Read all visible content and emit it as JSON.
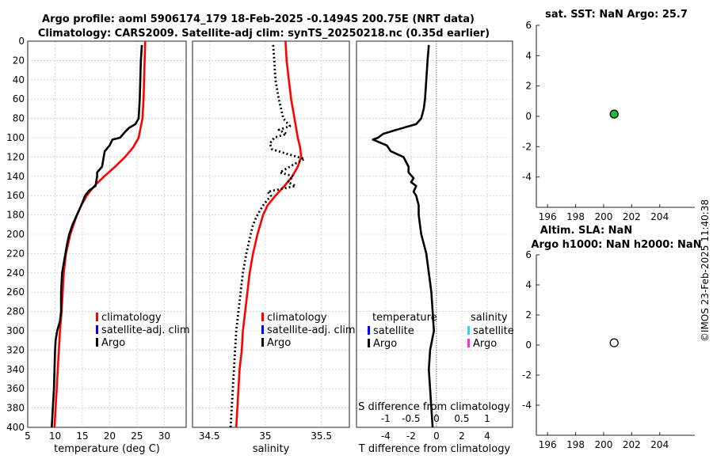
{
  "title": {
    "line1": "Argo profile: aoml 5906174_179 18-Feb-2025 -0.1494S 200.75E (NRT data)",
    "line2": "Climatology: CARS2009. Satellite-adj clim: synTS_20250218.nc (0.35d earlier)"
  },
  "footer_stamp": "©IMOS 23-Feb-2025 11:40:38",
  "colors": {
    "climatology": "#ff0000",
    "satellite": "#0000ff",
    "argo": "#000000",
    "sat_salinity": "#33ccff",
    "argo_salinity": "#ff33cc",
    "sst_marker": "#22bb33"
  },
  "chart_data": [
    {
      "id": "temperature",
      "type": "line",
      "xlabel": "temperature (deg C)",
      "ylabel": "",
      "xlim": [
        5,
        34
      ],
      "ylim": [
        400,
        0
      ],
      "xticks": [
        5,
        10,
        15,
        20,
        25,
        30
      ],
      "yticks": [
        0,
        20,
        40,
        60,
        80,
        100,
        120,
        140,
        160,
        180,
        200,
        220,
        240,
        260,
        280,
        300,
        320,
        340,
        360,
        380,
        400
      ],
      "legend": [
        "climatology",
        "satellite-adj. clim",
        "Argo"
      ],
      "series": [
        {
          "name": "climatology",
          "color": "#ff0000",
          "style": "solid",
          "depth": [
            0,
            20,
            40,
            60,
            80,
            100,
            110,
            120,
            130,
            140,
            150,
            160,
            170,
            180,
            200,
            220,
            240,
            260,
            280,
            300,
            320,
            340,
            360,
            380,
            400
          ],
          "values": [
            26.5,
            26.4,
            26.3,
            26.2,
            26.0,
            25.3,
            24.3,
            22.8,
            21.0,
            19.0,
            17.2,
            15.8,
            14.8,
            14.0,
            12.8,
            12.0,
            11.6,
            11.4,
            11.2,
            10.9,
            10.7,
            10.5,
            10.3,
            10.1,
            9.9
          ]
        },
        {
          "name": "Argo",
          "color": "#000000",
          "style": "solid",
          "depth": [
            4,
            20,
            40,
            60,
            80,
            86,
            90,
            94,
            100,
            102,
            108,
            114,
            120,
            130,
            136,
            140,
            150,
            155,
            160,
            170,
            180,
            190,
            200,
            210,
            220,
            240,
            260,
            280,
            290,
            300,
            310,
            320,
            340,
            360,
            380,
            400
          ],
          "values": [
            25.9,
            25.7,
            25.6,
            25.5,
            25.3,
            24.7,
            23.5,
            22.8,
            21.9,
            20.5,
            20.0,
            19.1,
            18.9,
            18.6,
            17.7,
            17.7,
            17.4,
            16.2,
            15.5,
            14.8,
            14.0,
            13.2,
            12.6,
            12.2,
            11.9,
            11.3,
            11.1,
            11.1,
            10.9,
            10.4,
            10.1,
            10.0,
            9.9,
            9.8,
            9.6,
            9.4
          ]
        }
      ]
    },
    {
      "id": "salinity",
      "type": "line",
      "xlabel": "salinity",
      "xlim": [
        34.35,
        35.75
      ],
      "ylim": [
        400,
        0
      ],
      "xticks": [
        34.5,
        35,
        35.5
      ],
      "xticklabels": [
        "34.5",
        "35",
        "35.5"
      ],
      "legend": [
        "climatology",
        "satellite-adj. clim",
        "Argo"
      ],
      "series": [
        {
          "name": "climatology",
          "color": "#ff0000",
          "style": "solid",
          "depth": [
            0,
            20,
            40,
            60,
            80,
            100,
            110,
            120,
            130,
            140,
            150,
            160,
            170,
            180,
            200,
            220,
            240,
            260,
            280,
            300,
            320,
            340,
            360,
            380,
            400
          ],
          "values": [
            35.18,
            35.19,
            35.21,
            35.23,
            35.26,
            35.29,
            35.31,
            35.32,
            35.29,
            35.24,
            35.17,
            35.09,
            35.02,
            34.98,
            34.93,
            34.89,
            34.86,
            34.84,
            34.82,
            34.8,
            34.79,
            34.77,
            34.76,
            34.75,
            34.74
          ]
        },
        {
          "name": "Argo",
          "color": "#000000",
          "style": "dotted",
          "depth": [
            4,
            20,
            40,
            60,
            80,
            88,
            92,
            96,
            100,
            106,
            112,
            118,
            122,
            126,
            130,
            136,
            140,
            146,
            150,
            156,
            160,
            170,
            180,
            190,
            200,
            220,
            240,
            260,
            280,
            300,
            320,
            340,
            360,
            380,
            400
          ],
          "values": [
            35.07,
            35.08,
            35.09,
            35.12,
            35.16,
            35.22,
            35.12,
            35.19,
            35.08,
            35.04,
            35.06,
            35.23,
            35.35,
            35.28,
            35.22,
            35.13,
            35.25,
            35.2,
            35.27,
            35.02,
            35.05,
            34.98,
            34.93,
            34.89,
            34.87,
            34.83,
            34.8,
            34.78,
            34.76,
            34.74,
            34.73,
            34.72,
            34.71,
            34.7,
            34.69
          ]
        }
      ]
    },
    {
      "id": "difference",
      "type": "line",
      "xlabel": "T difference from climatology",
      "xlabel_top": "S difference from climatology",
      "xlim": [
        -6.3,
        6.0
      ],
      "ylim": [
        400,
        0
      ],
      "xticks": [
        -4,
        -2,
        0,
        2,
        4
      ],
      "xticks_top": [
        -1,
        -0.5,
        0,
        0.5,
        1
      ],
      "xticklabels_top": [
        "-1",
        "-0.5",
        "0",
        "0.5",
        "1"
      ],
      "legend_temperature_title": "temperature",
      "legend_salinity_title": "salinity",
      "legend_temperature": [
        "satellite",
        "Argo"
      ],
      "legend_salinity": [
        "satellite",
        "Argo"
      ],
      "series": [
        {
          "name": "Argo T difference",
          "color": "#000000",
          "style": "solid",
          "depth": [
            4,
            20,
            40,
            60,
            70,
            80,
            86,
            92,
            96,
            100,
            102,
            108,
            114,
            120,
            130,
            136,
            142,
            146,
            150,
            156,
            160,
            170,
            180,
            190,
            200,
            210,
            220,
            240,
            260,
            280,
            300,
            320,
            340,
            360,
            380,
            400
          ],
          "values": [
            -0.6,
            -0.7,
            -0.8,
            -0.9,
            -1.0,
            -1.2,
            -1.6,
            -3.2,
            -4.2,
            -4.6,
            -5.0,
            -3.9,
            -3.6,
            -2.6,
            -2.2,
            -2.2,
            -1.8,
            -2.0,
            -1.6,
            -1.8,
            -1.6,
            -1.4,
            -1.4,
            -1.3,
            -1.2,
            -1.0,
            -0.8,
            -0.6,
            -0.4,
            -0.3,
            -0.2,
            -0.5,
            -0.6,
            -0.5,
            -0.4,
            -0.3
          ]
        }
      ]
    },
    {
      "id": "sst",
      "type": "scatter",
      "title": "sat. SST: NaN Argo: 25.7",
      "xlim": [
        195.2,
        206.5
      ],
      "ylim": [
        -6,
        6
      ],
      "xticks": [
        196,
        198,
        200,
        202,
        204
      ],
      "yticks": [
        -4,
        -2,
        0,
        2,
        4,
        6
      ],
      "points": [
        {
          "x": 200.75,
          "y": 0.15,
          "color": "#22bb33"
        }
      ]
    },
    {
      "id": "sla",
      "type": "scatter",
      "title_line1": "Altim. SLA: NaN",
      "title_line2": "Argo h1000: NaN h2000: NaN",
      "xlim": [
        195.2,
        206.5
      ],
      "ylim": [
        -6,
        6
      ],
      "xticks": [
        196,
        198,
        200,
        202,
        204
      ],
      "yticks": [
        -4,
        -2,
        0,
        2,
        4,
        6
      ],
      "points": [
        {
          "x": 200.75,
          "y": 0.15,
          "color": "none"
        }
      ]
    }
  ]
}
